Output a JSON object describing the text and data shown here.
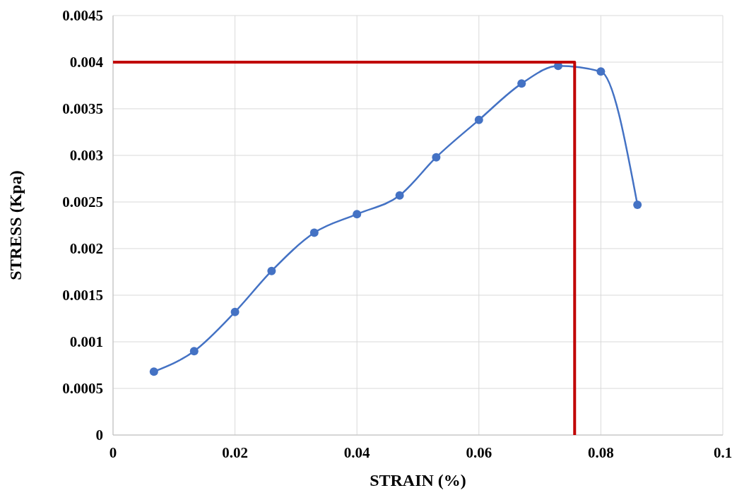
{
  "chart_data": {
    "type": "line",
    "xlabel": "STRAIN (%)",
    "ylabel": "STRESS (Kpa)",
    "xlim": [
      0,
      0.1
    ],
    "xticks": [
      0,
      0.02,
      0.04,
      0.06,
      0.08,
      0.1
    ],
    "ylim": [
      0,
      0.0045
    ],
    "yticks": [
      0,
      0.0005,
      0.001,
      0.0015,
      0.002,
      0.0025,
      0.003,
      0.0035,
      0.004,
      0.0045
    ],
    "grid": true,
    "series": [
      {
        "color": "#4472c4",
        "marker": "circle",
        "x": [
          0.0067,
          0.0133,
          0.02,
          0.026,
          0.033,
          0.04,
          0.047,
          0.053,
          0.06,
          0.067,
          0.073,
          0.08,
          0.086
        ],
        "values": [
          0.00068,
          0.0009,
          0.00132,
          0.00176,
          0.00217,
          0.00237,
          0.00257,
          0.00298,
          0.00338,
          0.00377,
          0.00396,
          0.0039,
          0.00247
        ]
      },
      {
        "color": "#c00000",
        "marker": "none",
        "x": [
          0,
          0.0757,
          0.0757
        ],
        "values": [
          0.004,
          0.004,
          0
        ]
      }
    ]
  }
}
